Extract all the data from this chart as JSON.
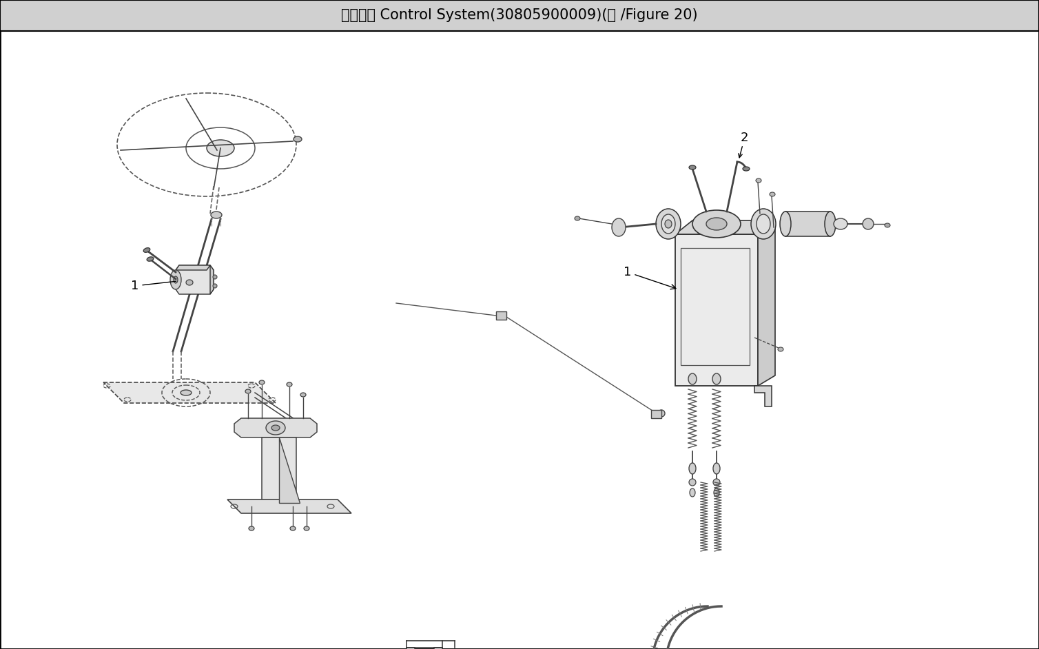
{
  "title": "操作系统 Control System(30805900009)(图 /Figure 20)",
  "title_fontsize": 15,
  "title_bg_color": "#d0d0d0",
  "border_color": "#000000",
  "bg_color": "#ffffff",
  "figwidth": 15.08,
  "figheight": 9.42,
  "dpi": 100
}
